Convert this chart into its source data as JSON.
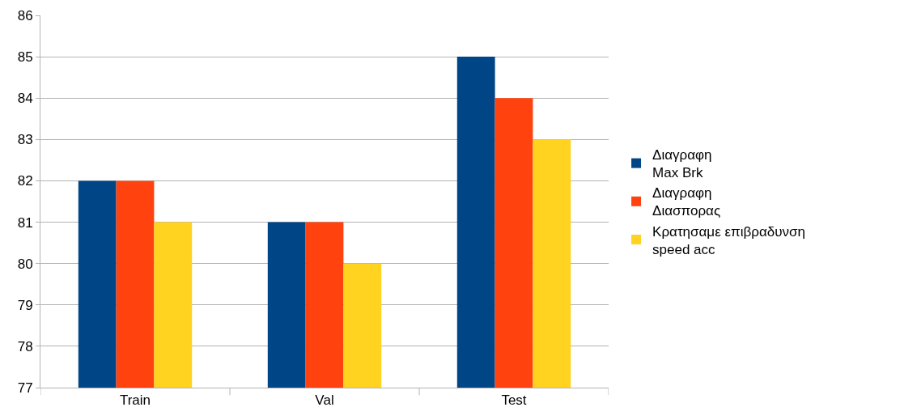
{
  "chart_data": {
    "type": "bar",
    "categories": [
      "Train",
      "Val",
      "Test"
    ],
    "series": [
      {
        "name": "Διαγραφη\nMax Brk",
        "color": "#004586",
        "values": [
          82,
          81,
          85
        ]
      },
      {
        "name": "Διαγραφη\nΔιασπορας",
        "color": "#ff420e",
        "values": [
          82,
          81,
          84
        ]
      },
      {
        "name": "Κρατησαμε επιβραδυνση\nspeed acc",
        "color": "#ffd320",
        "values": [
          81,
          80,
          83
        ]
      }
    ],
    "ylim": [
      77,
      86
    ],
    "yticks": [
      77,
      78,
      79,
      80,
      81,
      82,
      83,
      84,
      85,
      86
    ],
    "grid": "y",
    "legend": "right"
  }
}
